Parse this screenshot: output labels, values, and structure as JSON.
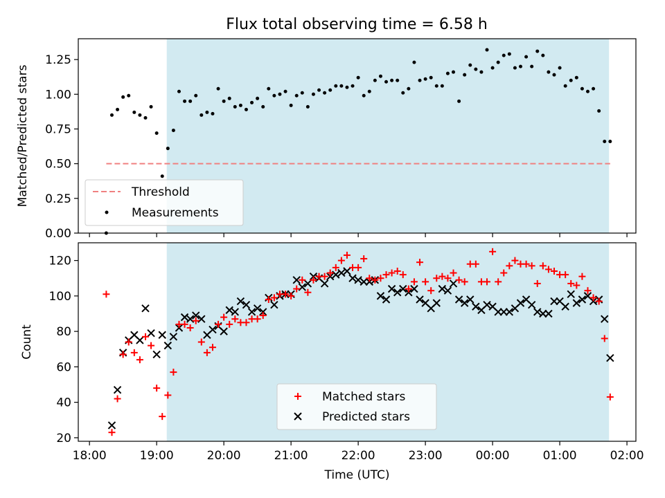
{
  "figure_title": "Flux total observing time = 6.58 h",
  "colors": {
    "shade": "#add8e6",
    "threshold": "#f08080",
    "measurement": "#000000",
    "matched": "#ff0000",
    "predicted": "#000000"
  },
  "chart_data": [
    {
      "type": "scatter",
      "ylabel": "Matched/Predicted stars",
      "ylim": [
        0,
        1.4
      ],
      "yticks": [
        0.0,
        0.25,
        0.5,
        0.75,
        1.0,
        1.25
      ],
      "ytick_labels": [
        "0.00",
        "0.25",
        "0.50",
        "0.75",
        "1.00",
        "1.25"
      ],
      "xlim": [
        "17:50",
        "02:08"
      ],
      "shaded_span": [
        "19:09",
        "01:44"
      ],
      "legend_position": "lower left",
      "threshold": {
        "name": "Threshold",
        "value": 0.5,
        "x_range": [
          "18:15",
          "01:45"
        ],
        "style": "dashed"
      },
      "series": [
        {
          "name": "Measurements",
          "marker": "dot",
          "x": [
            "18:15",
            "18:20",
            "18:25",
            "18:30",
            "18:35",
            "18:40",
            "18:45",
            "18:50",
            "18:55",
            "19:00",
            "19:05",
            "19:10",
            "19:15",
            "19:20",
            "19:25",
            "19:30",
            "19:35",
            "19:40",
            "19:45",
            "19:50",
            "19:55",
            "20:00",
            "20:05",
            "20:10",
            "20:15",
            "20:20",
            "20:25",
            "20:30",
            "20:35",
            "20:40",
            "20:45",
            "20:50",
            "20:55",
            "21:00",
            "21:05",
            "21:10",
            "21:15",
            "21:20",
            "21:25",
            "21:30",
            "21:35",
            "21:40",
            "21:45",
            "21:50",
            "21:55",
            "22:00",
            "22:05",
            "22:10",
            "22:15",
            "22:20",
            "22:25",
            "22:30",
            "22:35",
            "22:40",
            "22:45",
            "22:50",
            "22:55",
            "23:00",
            "23:05",
            "23:10",
            "23:15",
            "23:20",
            "23:25",
            "23:30",
            "23:35",
            "23:40",
            "23:45",
            "23:50",
            "23:55",
            "00:00",
            "00:05",
            "00:10",
            "00:15",
            "00:20",
            "00:25",
            "00:30",
            "00:35",
            "00:40",
            "00:45",
            "00:50",
            "00:55",
            "01:00",
            "01:05",
            "01:10",
            "01:15",
            "01:20",
            "01:25",
            "01:30",
            "01:35",
            "01:40",
            "01:45"
          ],
          "y": [
            0.0,
            0.85,
            0.89,
            0.98,
            0.99,
            0.87,
            0.85,
            0.83,
            0.91,
            0.72,
            0.41,
            0.61,
            0.74,
            1.02,
            0.95,
            0.95,
            0.99,
            0.85,
            0.87,
            0.86,
            1.04,
            0.95,
            0.97,
            0.91,
            0.92,
            0.89,
            0.94,
            0.97,
            0.91,
            1.04,
            0.99,
            1.0,
            1.02,
            0.92,
            0.99,
            1.01,
            0.91,
            1.0,
            1.03,
            1.01,
            1.03,
            1.06,
            1.06,
            1.05,
            1.06,
            1.12,
            0.99,
            1.02,
            1.1,
            1.13,
            1.09,
            1.1,
            1.1,
            1.01,
            1.04,
            1.23,
            1.1,
            1.11,
            1.12,
            1.06,
            1.06,
            1.15,
            1.16,
            0.95,
            1.14,
            1.21,
            1.18,
            1.16,
            1.32,
            1.19,
            1.23,
            1.28,
            1.29,
            1.19,
            1.2,
            1.27,
            1.2,
            1.31,
            1.28,
            1.16,
            1.14,
            1.19,
            1.06,
            1.1,
            1.12,
            1.04,
            1.02,
            1.04,
            0.88,
            0.66,
            0.66
          ]
        }
      ]
    },
    {
      "type": "scatter",
      "xlabel": "Time (UTC)",
      "ylabel": "Count",
      "ylim": [
        18,
        130
      ],
      "yticks": [
        20,
        40,
        60,
        80,
        100,
        120
      ],
      "ytick_labels": [
        "20",
        "40",
        "60",
        "80",
        "100",
        "120"
      ],
      "xlim": [
        "17:50",
        "02:08"
      ],
      "xticks": [
        "18:00",
        "19:00",
        "20:00",
        "21:00",
        "22:00",
        "23:00",
        "00:00",
        "01:00",
        "02:00"
      ],
      "xtick_labels": [
        "18:00",
        "19:00",
        "20:00",
        "21:00",
        "22:00",
        "23:00",
        "00:00",
        "01:00",
        "02:00"
      ],
      "shaded_span": [
        "19:09",
        "01:44"
      ],
      "legend_position": "lower center",
      "series": [
        {
          "name": "Matched stars",
          "marker": "plus",
          "x": [
            "18:15",
            "18:20",
            "18:25",
            "18:30",
            "18:35",
            "18:40",
            "18:45",
            "18:50",
            "18:55",
            "19:00",
            "19:05",
            "19:10",
            "19:15",
            "19:20",
            "19:25",
            "19:30",
            "19:35",
            "19:40",
            "19:45",
            "19:50",
            "19:55",
            "20:00",
            "20:05",
            "20:10",
            "20:15",
            "20:20",
            "20:25",
            "20:30",
            "20:35",
            "20:40",
            "20:45",
            "20:50",
            "20:55",
            "21:00",
            "21:05",
            "21:10",
            "21:15",
            "21:20",
            "21:25",
            "21:30",
            "21:35",
            "21:40",
            "21:45",
            "21:50",
            "21:55",
            "22:00",
            "22:05",
            "22:10",
            "22:15",
            "22:20",
            "22:25",
            "22:30",
            "22:35",
            "22:40",
            "22:45",
            "22:50",
            "22:55",
            "23:00",
            "23:05",
            "23:10",
            "23:15",
            "23:20",
            "23:25",
            "23:30",
            "23:35",
            "23:40",
            "23:45",
            "23:50",
            "23:55",
            "00:00",
            "00:05",
            "00:10",
            "00:15",
            "00:20",
            "00:25",
            "00:30",
            "00:35",
            "00:40",
            "00:45",
            "00:50",
            "00:55",
            "01:00",
            "01:05",
            "01:10",
            "01:15",
            "01:20",
            "01:25",
            "01:30",
            "01:35",
            "01:40",
            "01:45"
          ],
          "y": [
            101,
            23,
            42,
            67,
            74,
            68,
            64,
            77,
            72,
            48,
            32,
            44,
            57,
            84,
            84,
            82,
            86,
            74,
            68,
            71,
            84,
            88,
            84,
            87,
            85,
            85,
            87,
            87,
            89,
            98,
            99,
            101,
            101,
            100,
            104,
            109,
            102,
            109,
            111,
            111,
            113,
            116,
            120,
            123,
            116,
            116,
            121,
            110,
            109,
            110,
            112,
            113,
            114,
            112,
            104,
            108,
            119,
            108,
            103,
            110,
            111,
            110,
            113,
            109,
            108,
            118,
            118,
            108,
            108,
            125,
            108,
            113,
            117,
            120,
            118,
            118,
            117,
            107,
            117,
            115,
            114,
            112,
            112,
            107,
            106,
            111,
            103,
            99,
            97,
            76,
            43
          ]
        },
        {
          "name": "Predicted stars",
          "marker": "x",
          "x": [
            "18:20",
            "18:25",
            "18:30",
            "18:35",
            "18:40",
            "18:45",
            "18:50",
            "18:55",
            "19:00",
            "19:05",
            "19:10",
            "19:15",
            "19:20",
            "19:25",
            "19:30",
            "19:35",
            "19:40",
            "19:45",
            "19:50",
            "19:55",
            "20:00",
            "20:05",
            "20:10",
            "20:15",
            "20:20",
            "20:25",
            "20:30",
            "20:35",
            "20:40",
            "20:45",
            "20:50",
            "20:55",
            "21:00",
            "21:05",
            "21:10",
            "21:15",
            "21:20",
            "21:25",
            "21:30",
            "21:35",
            "21:40",
            "21:45",
            "21:50",
            "21:55",
            "22:00",
            "22:05",
            "22:10",
            "22:15",
            "22:20",
            "22:25",
            "22:30",
            "22:35",
            "22:40",
            "22:45",
            "22:50",
            "22:55",
            "23:00",
            "23:05",
            "23:10",
            "23:15",
            "23:20",
            "23:25",
            "23:30",
            "23:35",
            "23:40",
            "23:45",
            "23:50",
            "23:55",
            "00:00",
            "00:05",
            "00:10",
            "00:15",
            "00:20",
            "00:25",
            "00:30",
            "00:35",
            "00:40",
            "00:45",
            "00:50",
            "00:55",
            "01:00",
            "01:05",
            "01:10",
            "01:15",
            "01:20",
            "01:25",
            "01:30",
            "01:35",
            "01:40",
            "01:45"
          ],
          "y": [
            27,
            47,
            68,
            75,
            78,
            75,
            93,
            79,
            67,
            78,
            72,
            77,
            82,
            88,
            87,
            89,
            87,
            78,
            81,
            83,
            80,
            92,
            91,
            97,
            95,
            91,
            93,
            91,
            99,
            95,
            100,
            101,
            101,
            109,
            105,
            107,
            111,
            110,
            107,
            111,
            112,
            113,
            114,
            110,
            109,
            108,
            108,
            109,
            100,
            98,
            104,
            102,
            104,
            102,
            104,
            98,
            96,
            93,
            96,
            104,
            103,
            107,
            98,
            96,
            98,
            94,
            92,
            95,
            94,
            91,
            91,
            91,
            93,
            96,
            98,
            95,
            91,
            90,
            90,
            97,
            97,
            94,
            101,
            96,
            98,
            100,
            97,
            98,
            87,
            65
          ]
        }
      ]
    }
  ]
}
